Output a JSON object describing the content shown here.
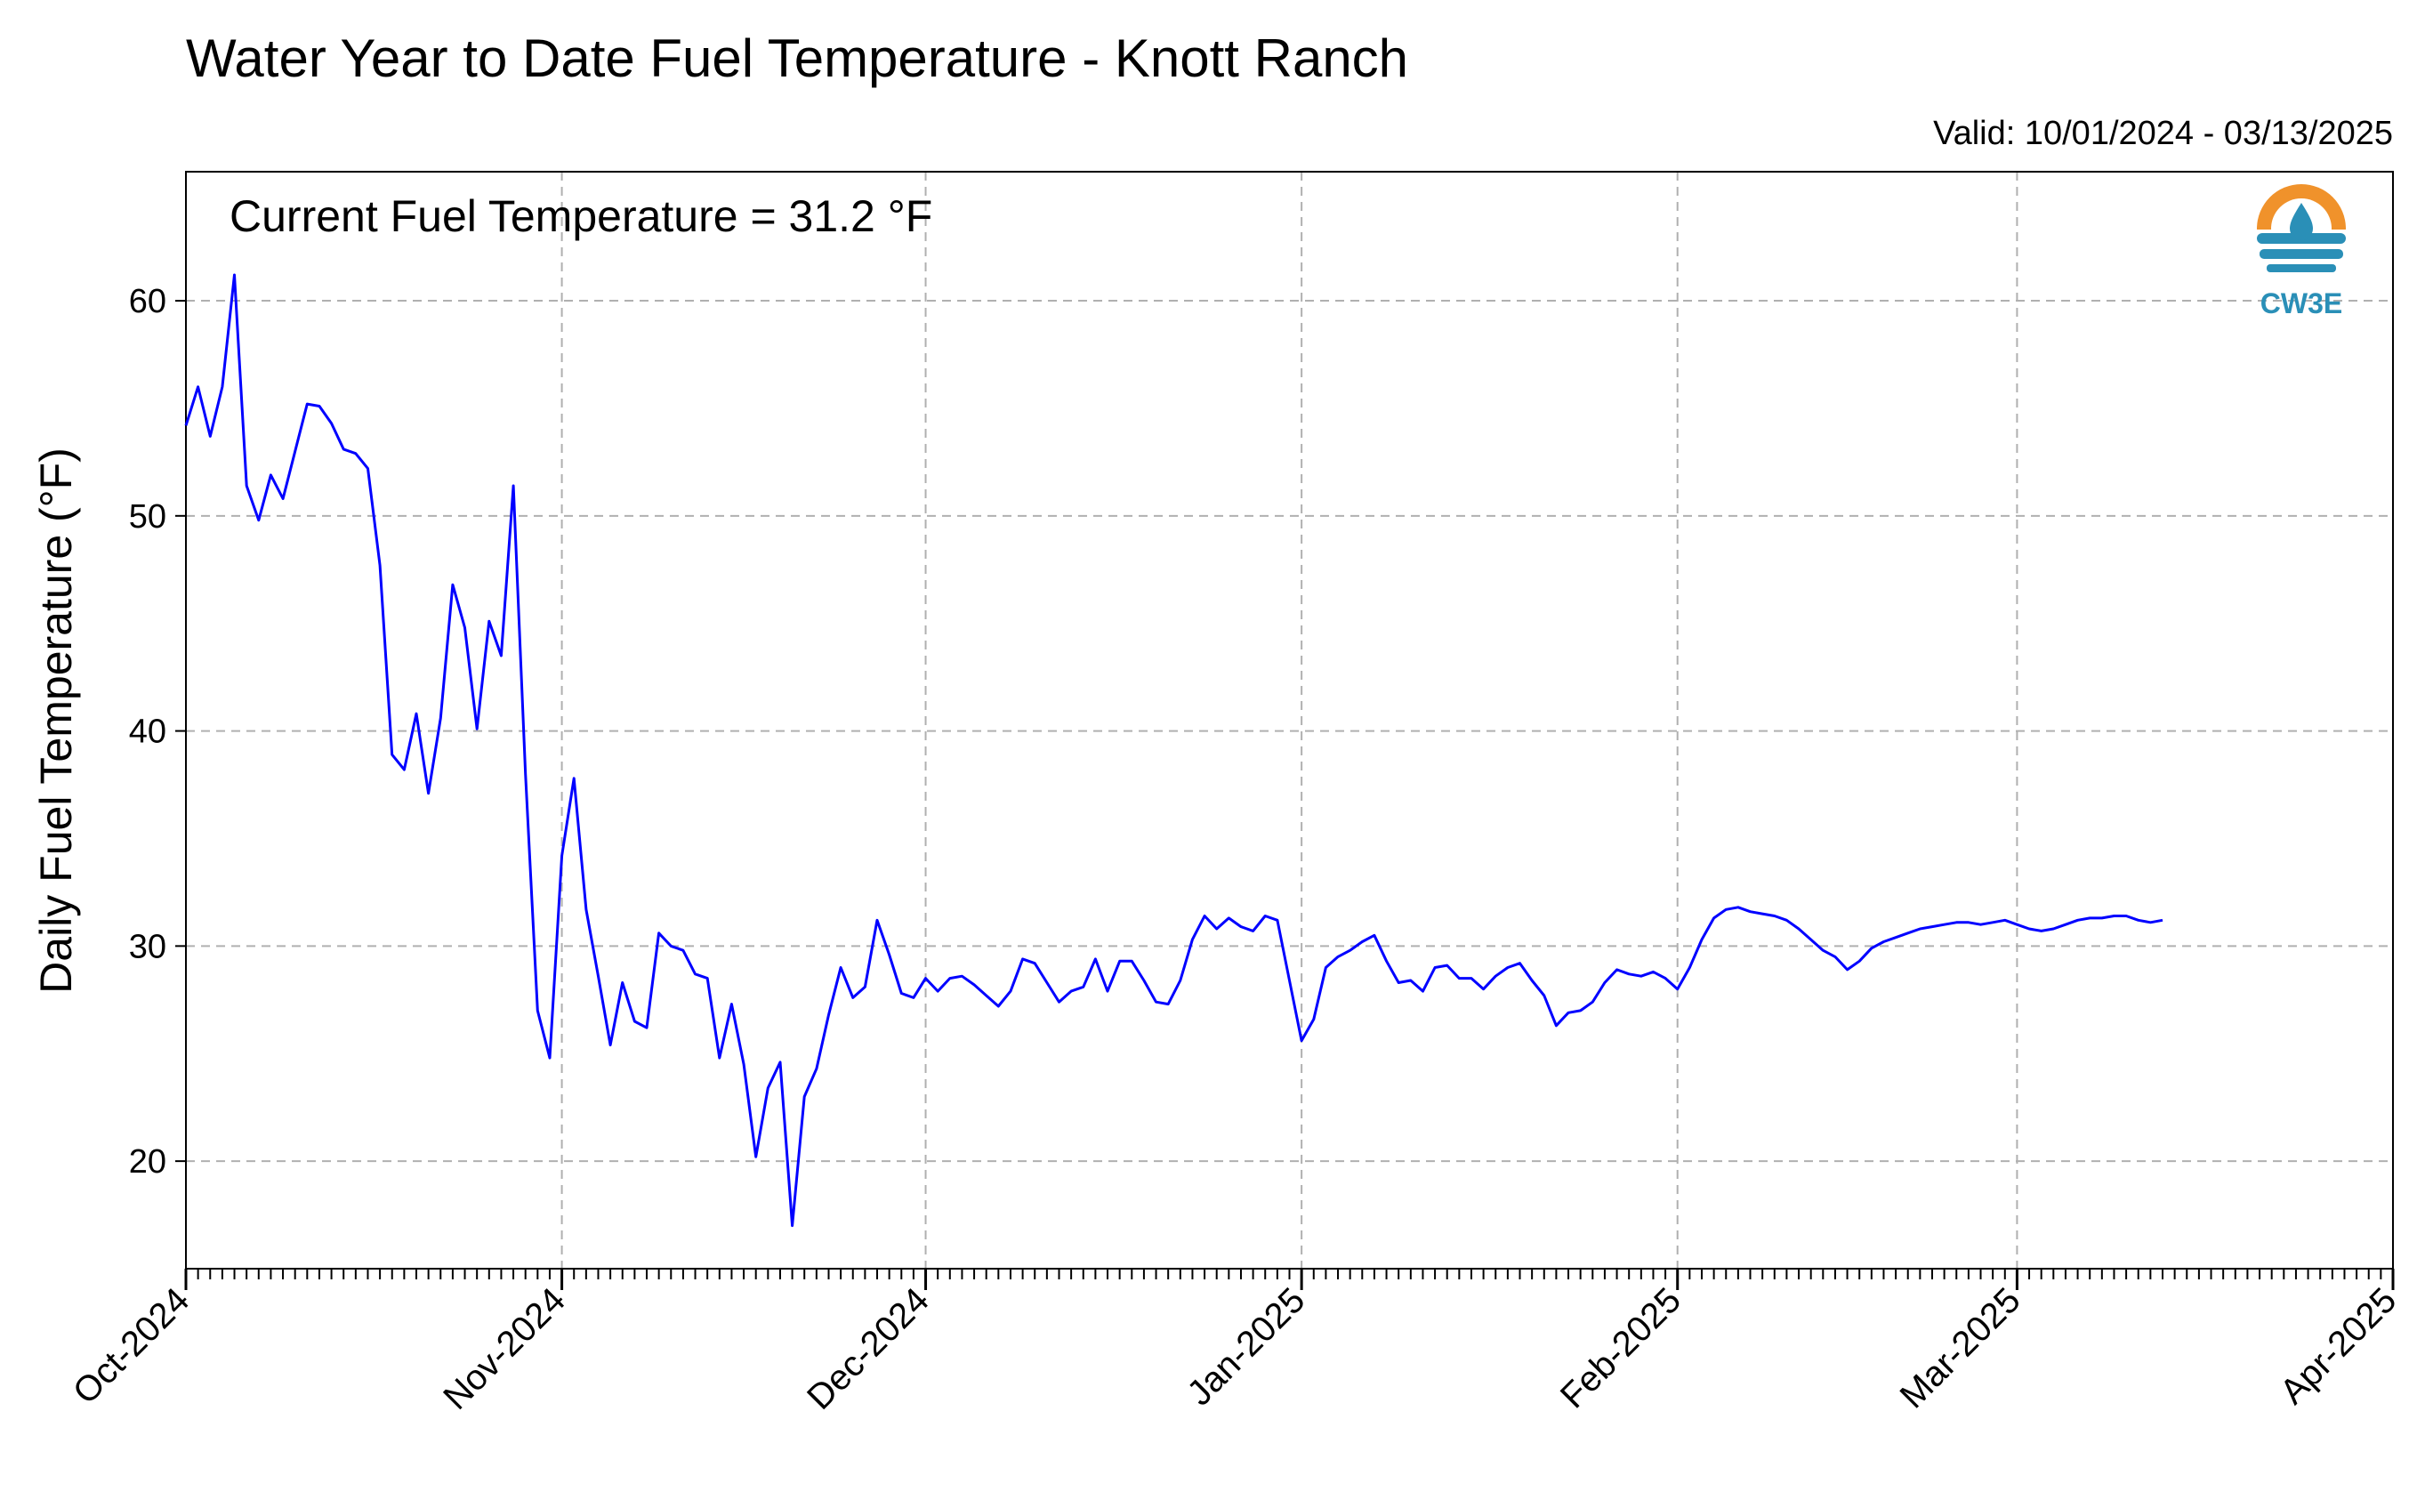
{
  "title": "Water Year to Date Fuel Temperature - Knott Ranch",
  "valid_text": "Valid: 10/01/2024 - 03/13/2025",
  "annotation": "Current Fuel Temperature = 31.2 °F",
  "logo": {
    "text": "CW3E",
    "icon": "water-drop-sun-icon",
    "colors": {
      "sun": "#f0922b",
      "water": "#2a8fb7"
    }
  },
  "chart_data": {
    "type": "line",
    "title": "Water Year to Date Fuel Temperature - Knott Ranch",
    "xlabel": "",
    "ylabel": "Daily Fuel Temperature (°F)",
    "xlim": [
      "2024-10-01",
      "2025-04-01"
    ],
    "ylim": [
      15,
      66
    ],
    "yticks": [
      20,
      30,
      40,
      50,
      60
    ],
    "xticks": [
      {
        "date": "2024-10-01",
        "label": "Oct-2024"
      },
      {
        "date": "2024-11-01",
        "label": "Nov-2024"
      },
      {
        "date": "2024-12-01",
        "label": "Dec-2024"
      },
      {
        "date": "2025-01-01",
        "label": "Jan-2025"
      },
      {
        "date": "2025-02-01",
        "label": "Feb-2025"
      },
      {
        "date": "2025-03-01",
        "label": "Mar-2025"
      },
      {
        "date": "2025-04-01",
        "label": "Apr-2025"
      }
    ],
    "grid": true,
    "line_color": "#0000ff",
    "series": [
      {
        "points": [
          [
            "2024-10-01",
            54.2
          ],
          [
            "2024-10-02",
            56.0
          ],
          [
            "2024-10-03",
            53.7
          ],
          [
            "2024-10-04",
            56.0
          ],
          [
            "2024-10-05",
            61.2
          ],
          [
            "2024-10-06",
            51.4
          ],
          [
            "2024-10-07",
            49.8
          ],
          [
            "2024-10-08",
            51.9
          ],
          [
            "2024-10-09",
            50.8
          ],
          [
            "2024-10-10",
            53.0
          ],
          [
            "2024-10-11",
            55.2
          ],
          [
            "2024-10-12",
            55.1
          ],
          [
            "2024-10-13",
            54.3
          ],
          [
            "2024-10-14",
            53.1
          ],
          [
            "2024-10-15",
            52.9
          ],
          [
            "2024-10-16",
            52.2
          ],
          [
            "2024-10-17",
            47.7
          ],
          [
            "2024-10-18",
            38.9
          ],
          [
            "2024-10-19",
            38.2
          ],
          [
            "2024-10-20",
            40.8
          ],
          [
            "2024-10-21",
            37.1
          ],
          [
            "2024-10-22",
            40.6
          ],
          [
            "2024-10-23",
            46.8
          ],
          [
            "2024-10-24",
            44.8
          ],
          [
            "2024-10-25",
            40.1
          ],
          [
            "2024-10-26",
            45.1
          ],
          [
            "2024-10-27",
            43.5
          ],
          [
            "2024-10-28",
            51.4
          ],
          [
            "2024-10-29",
            38.0
          ],
          [
            "2024-10-30",
            27.0
          ],
          [
            "2024-10-31",
            24.8
          ],
          [
            "2024-11-01",
            34.2
          ],
          [
            "2024-11-02",
            37.8
          ],
          [
            "2024-11-03",
            31.7
          ],
          [
            "2024-11-04",
            28.6
          ],
          [
            "2024-11-05",
            25.4
          ],
          [
            "2024-11-06",
            28.3
          ],
          [
            "2024-11-07",
            26.5
          ],
          [
            "2024-11-08",
            26.2
          ],
          [
            "2024-11-09",
            30.6
          ],
          [
            "2024-11-10",
            30.0
          ],
          [
            "2024-11-11",
            29.8
          ],
          [
            "2024-11-12",
            28.7
          ],
          [
            "2024-11-13",
            28.5
          ],
          [
            "2024-11-14",
            24.8
          ],
          [
            "2024-11-15",
            27.3
          ],
          [
            "2024-11-16",
            24.5
          ],
          [
            "2024-11-17",
            20.2
          ],
          [
            "2024-11-18",
            23.4
          ],
          [
            "2024-11-19",
            24.6
          ],
          [
            "2024-11-20",
            17.0
          ],
          [
            "2024-11-21",
            23.0
          ],
          [
            "2024-11-22",
            24.3
          ],
          [
            "2024-11-23",
            26.8
          ],
          [
            "2024-11-24",
            29.0
          ],
          [
            "2024-11-25",
            27.6
          ],
          [
            "2024-11-26",
            28.1
          ],
          [
            "2024-11-27",
            31.2
          ],
          [
            "2024-11-28",
            29.6
          ],
          [
            "2024-11-29",
            27.8
          ],
          [
            "2024-11-30",
            27.6
          ],
          [
            "2024-12-01",
            28.5
          ],
          [
            "2024-12-02",
            27.9
          ],
          [
            "2024-12-03",
            28.5
          ],
          [
            "2024-12-04",
            28.6
          ],
          [
            "2024-12-05",
            28.2
          ],
          [
            "2024-12-06",
            27.7
          ],
          [
            "2024-12-07",
            27.2
          ],
          [
            "2024-12-08",
            27.9
          ],
          [
            "2024-12-09",
            29.4
          ],
          [
            "2024-12-10",
            29.2
          ],
          [
            "2024-12-11",
            28.3
          ],
          [
            "2024-12-12",
            27.4
          ],
          [
            "2024-12-13",
            27.9
          ],
          [
            "2024-12-14",
            28.1
          ],
          [
            "2024-12-15",
            29.4
          ],
          [
            "2024-12-16",
            27.9
          ],
          [
            "2024-12-17",
            29.3
          ],
          [
            "2024-12-18",
            29.3
          ],
          [
            "2024-12-19",
            28.4
          ],
          [
            "2024-12-20",
            27.4
          ],
          [
            "2024-12-21",
            27.3
          ],
          [
            "2024-12-22",
            28.4
          ],
          [
            "2024-12-23",
            30.3
          ],
          [
            "2024-12-24",
            31.4
          ],
          [
            "2024-12-25",
            30.8
          ],
          [
            "2024-12-26",
            31.3
          ],
          [
            "2024-12-27",
            30.9
          ],
          [
            "2024-12-28",
            30.7
          ],
          [
            "2024-12-29",
            31.4
          ],
          [
            "2024-12-30",
            31.2
          ],
          [
            "2024-12-31",
            28.4
          ],
          [
            "2025-01-01",
            25.6
          ],
          [
            "2025-01-02",
            26.6
          ],
          [
            "2025-01-03",
            29.0
          ],
          [
            "2025-01-04",
            29.5
          ],
          [
            "2025-01-05",
            29.8
          ],
          [
            "2025-01-06",
            30.2
          ],
          [
            "2025-01-07",
            30.5
          ],
          [
            "2025-01-08",
            29.3
          ],
          [
            "2025-01-09",
            28.3
          ],
          [
            "2025-01-10",
            28.4
          ],
          [
            "2025-01-11",
            27.9
          ],
          [
            "2025-01-12",
            29.0
          ],
          [
            "2025-01-13",
            29.1
          ],
          [
            "2025-01-14",
            28.5
          ],
          [
            "2025-01-15",
            28.5
          ],
          [
            "2025-01-16",
            28.0
          ],
          [
            "2025-01-17",
            28.6
          ],
          [
            "2025-01-18",
            29.0
          ],
          [
            "2025-01-19",
            29.2
          ],
          [
            "2025-01-20",
            28.4
          ],
          [
            "2025-01-21",
            27.7
          ],
          [
            "2025-01-22",
            26.3
          ],
          [
            "2025-01-23",
            26.9
          ],
          [
            "2025-01-24",
            27.0
          ],
          [
            "2025-01-25",
            27.4
          ],
          [
            "2025-01-26",
            28.3
          ],
          [
            "2025-01-27",
            28.9
          ],
          [
            "2025-01-28",
            28.7
          ],
          [
            "2025-01-29",
            28.6
          ],
          [
            "2025-01-30",
            28.8
          ],
          [
            "2025-01-31",
            28.5
          ],
          [
            "2025-02-01",
            28.0
          ],
          [
            "2025-02-02",
            29.0
          ],
          [
            "2025-02-03",
            30.3
          ],
          [
            "2025-02-04",
            31.3
          ],
          [
            "2025-02-05",
            31.7
          ],
          [
            "2025-02-06",
            31.8
          ],
          [
            "2025-02-07",
            31.6
          ],
          [
            "2025-02-08",
            31.5
          ],
          [
            "2025-02-09",
            31.4
          ],
          [
            "2025-02-10",
            31.2
          ],
          [
            "2025-02-11",
            30.8
          ],
          [
            "2025-02-12",
            30.3
          ],
          [
            "2025-02-13",
            29.8
          ],
          [
            "2025-02-14",
            29.5
          ],
          [
            "2025-02-15",
            28.9
          ],
          [
            "2025-02-16",
            29.3
          ],
          [
            "2025-02-17",
            29.9
          ],
          [
            "2025-02-18",
            30.2
          ],
          [
            "2025-02-19",
            30.4
          ],
          [
            "2025-02-20",
            30.6
          ],
          [
            "2025-02-21",
            30.8
          ],
          [
            "2025-02-22",
            30.9
          ],
          [
            "2025-02-23",
            31.0
          ],
          [
            "2025-02-24",
            31.1
          ],
          [
            "2025-02-25",
            31.1
          ],
          [
            "2025-02-26",
            31.0
          ],
          [
            "2025-02-27",
            31.1
          ],
          [
            "2025-02-28",
            31.2
          ],
          [
            "2025-03-01",
            31.0
          ],
          [
            "2025-03-02",
            30.8
          ],
          [
            "2025-03-03",
            30.7
          ],
          [
            "2025-03-04",
            30.8
          ],
          [
            "2025-03-05",
            31.0
          ],
          [
            "2025-03-06",
            31.2
          ],
          [
            "2025-03-07",
            31.3
          ],
          [
            "2025-03-08",
            31.3
          ],
          [
            "2025-03-09",
            31.4
          ],
          [
            "2025-03-10",
            31.4
          ],
          [
            "2025-03-11",
            31.2
          ],
          [
            "2025-03-12",
            31.1
          ],
          [
            "2025-03-13",
            31.2
          ]
        ]
      }
    ]
  }
}
